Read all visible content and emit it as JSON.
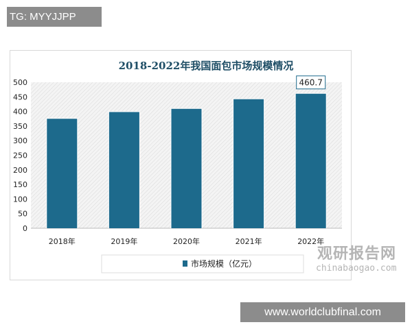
{
  "watermark_top": "TG: MYYJJPP",
  "watermark_bottom": "www.worldclubfinal.com",
  "watermark_logo": {
    "cn": "观研报告网",
    "en": "chinabaogao.com"
  },
  "chart_data": {
    "type": "bar",
    "title": "2018-2022年我国面包市场规模情况",
    "categories": [
      "2018年",
      "2019年",
      "2020年",
      "2021年",
      "2022年"
    ],
    "series": [
      {
        "name": "市场规模（亿元）",
        "values": [
          375,
          398,
          409,
          442,
          460.7
        ],
        "color": "#1d6a8c"
      }
    ],
    "data_labels": [
      {
        "category": "2022年",
        "text": "460.7"
      }
    ],
    "ylim": [
      0,
      500
    ],
    "yticks": [
      0,
      50,
      100,
      150,
      200,
      250,
      300,
      350,
      400,
      450,
      500
    ],
    "grid": false,
    "background": "hatched",
    "legend_position": "bottom"
  }
}
